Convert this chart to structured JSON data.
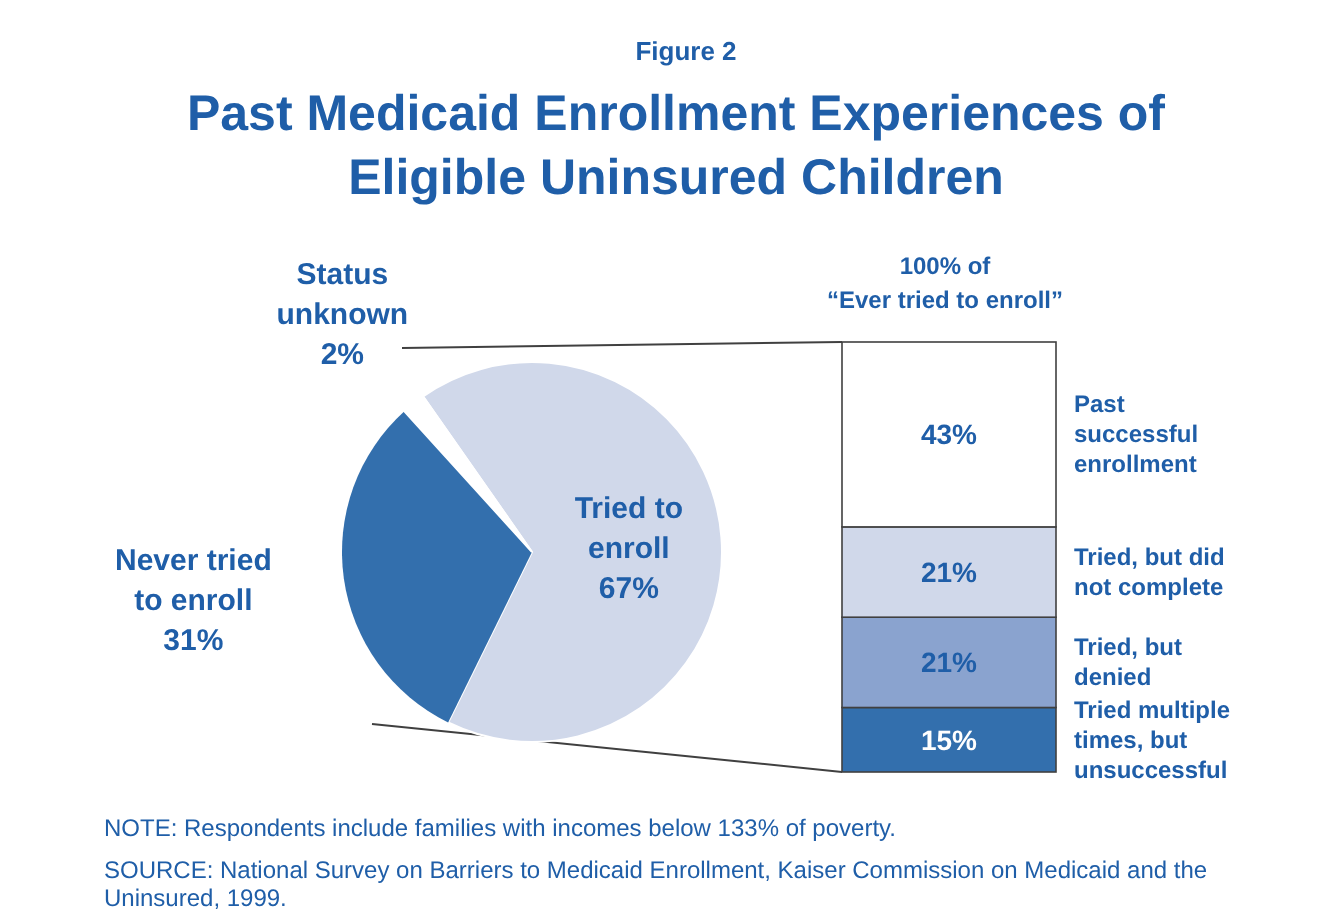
{
  "chart_data": [
    {
      "type": "pie",
      "subtitle": "Figure 2",
      "title": "Past Medicaid Enrollment Experiences of Eligible Uninsured Children",
      "categories": [
        "Tried to enroll",
        "Never tried to enroll",
        "Status unknown"
      ],
      "values": [
        67,
        31,
        2
      ],
      "value_labels": [
        "67%",
        "31%",
        "2%"
      ],
      "colors": [
        "#d0d8ea",
        "#336fad",
        "#ffffff"
      ],
      "annotations": [
        "NOTE: Respondents include families with incomes below 133% of poverty.",
        "SOURCE: National Survey on Barriers to Medicaid Enrollment, Kaiser Commission on Medicaid and the Uninsured, 1999."
      ]
    },
    {
      "type": "bar",
      "stacked": true,
      "title": "100% of “Ever tried to enroll”",
      "categories": [
        null
      ],
      "series": [
        {
          "name": "Tried multiple times, but unsuccessful",
          "color": "#336fad",
          "values": [
            15
          ],
          "value_labels": [
            "15%"
          ]
        },
        {
          "name": "Tried, but denied",
          "color": "#8aa3cf",
          "values": [
            21
          ],
          "value_labels": [
            "21%"
          ]
        },
        {
          "name": "Tried, but did not complete",
          "color": "#d0d8ea",
          "values": [
            21
          ],
          "value_labels": [
            "21%"
          ]
        },
        {
          "name": "Past successful enrollment",
          "color": "#ffffff",
          "values": [
            43
          ],
          "value_labels": [
            "43%"
          ]
        }
      ]
    }
  ]
}
